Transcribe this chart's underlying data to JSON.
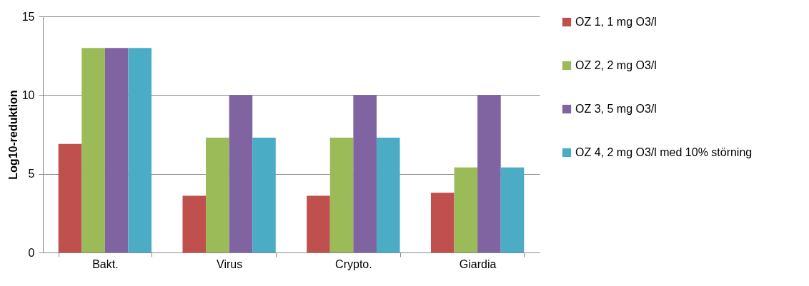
{
  "chart_data": {
    "type": "bar",
    "ylabel": "Log10-reduktion",
    "categories": [
      "Bakt.",
      "Virus",
      "Crypto.",
      "Giardia"
    ],
    "series": [
      {
        "name": "OZ 1, 1 mg O3/l",
        "color": "#c0504d",
        "values": [
          6.9,
          3.6,
          3.6,
          3.8
        ]
      },
      {
        "name": "OZ 2, 2 mg O3/l",
        "color": "#9bbb59",
        "values": [
          13,
          7.3,
          7.3,
          5.4
        ]
      },
      {
        "name": "OZ 3, 5 mg O3/l",
        "color": "#8064a2",
        "values": [
          13,
          10,
          10,
          10
        ]
      },
      {
        "name": "OZ 4, 2 mg O3/l med 10% störning",
        "color": "#4bacc6",
        "values": [
          13,
          7.3,
          7.3,
          5.4
        ]
      }
    ],
    "ylim": [
      0,
      15
    ],
    "yticks": [
      0,
      5,
      10,
      15
    ],
    "grid": "y",
    "legend": "right"
  }
}
